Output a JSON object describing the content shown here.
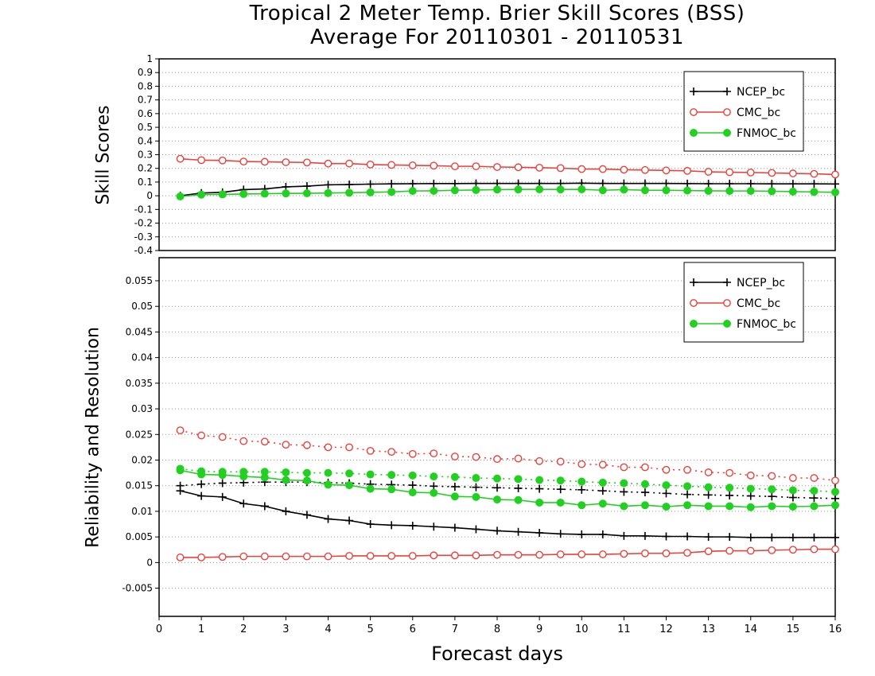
{
  "title_line1": "Tropical 2 Meter Temp. Brier Skill Scores (BSS)",
  "title_line2": "Average For 20110301 - 20110531",
  "xlabel": "Forecast days",
  "x_ticks": [
    "0",
    "1",
    "2",
    "3",
    "4",
    "5",
    "6",
    "7",
    "8",
    "9",
    "10",
    "11",
    "12",
    "13",
    "14",
    "15",
    "16"
  ],
  "colors": {
    "ncep": "#000000",
    "cmc": "#e8423c",
    "fnmoc": "#22d022",
    "grid": "#999999"
  },
  "chart_data": [
    {
      "type": "line",
      "ylabel": "Skill Scores",
      "xlim": [
        0,
        16
      ],
      "ylim": [
        -0.4,
        1
      ],
      "y_ticks": [
        "-0.4",
        "-0.3",
        "-0.2",
        "-0.1",
        "0",
        "0.1",
        "0.2",
        "0.3",
        "0.4",
        "0.5",
        "0.6",
        "0.7",
        "0.8",
        "0.9",
        "1"
      ],
      "grid": true,
      "legend_position": "top-right",
      "x": [
        0.5,
        1,
        1.5,
        2,
        2.5,
        3,
        3.5,
        4,
        4.5,
        5,
        5.5,
        6,
        6.5,
        7,
        7.5,
        8,
        8.5,
        9,
        9.5,
        10,
        10.5,
        11,
        11.5,
        12,
        12.5,
        13,
        13.5,
        14,
        14.5,
        15,
        15.5,
        16
      ],
      "series": [
        {
          "name": "NCEP_bc",
          "style": "solid",
          "marker": "plus",
          "color": "#000000",
          "values": [
            0.0,
            0.02,
            0.025,
            0.045,
            0.05,
            0.065,
            0.07,
            0.08,
            0.082,
            0.085,
            0.087,
            0.088,
            0.089,
            0.089,
            0.09,
            0.09,
            0.09,
            0.09,
            0.09,
            0.092,
            0.09,
            0.09,
            0.09,
            0.09,
            0.089,
            0.088,
            0.088,
            0.088,
            0.087,
            0.087,
            0.087,
            0.086
          ]
        },
        {
          "name": "CMC_bc",
          "style": "solid",
          "marker": "open-circle",
          "color": "#e8423c",
          "values": [
            0.27,
            0.26,
            0.258,
            0.25,
            0.248,
            0.245,
            0.243,
            0.235,
            0.235,
            0.228,
            0.225,
            0.222,
            0.22,
            0.215,
            0.215,
            0.21,
            0.208,
            0.205,
            0.202,
            0.195,
            0.195,
            0.19,
            0.188,
            0.185,
            0.182,
            0.175,
            0.172,
            0.17,
            0.167,
            0.163,
            0.16,
            0.155
          ]
        },
        {
          "name": "FNMOC_bc",
          "style": "solid",
          "marker": "filled-circle",
          "color": "#22d022",
          "values": [
            -0.005,
            0.008,
            0.01,
            0.013,
            0.015,
            0.017,
            0.018,
            0.02,
            0.022,
            0.025,
            0.028,
            0.035,
            0.036,
            0.04,
            0.042,
            0.045,
            0.046,
            0.047,
            0.046,
            0.047,
            0.04,
            0.045,
            0.04,
            0.04,
            0.038,
            0.036,
            0.035,
            0.035,
            0.033,
            0.03,
            0.028,
            0.025
          ]
        }
      ]
    },
    {
      "type": "line",
      "ylabel": "Reliability and Resolution",
      "xlim": [
        0,
        16
      ],
      "ylim": [
        -0.0105,
        0.0595
      ],
      "y_ticks": [
        "-0.005",
        "0",
        "0.005",
        "0.01",
        "0.015",
        "0.02",
        "0.025",
        "0.03",
        "0.035",
        "0.04",
        "0.045",
        "0.05",
        "0.055"
      ],
      "grid": true,
      "legend_position": "top-right",
      "x": [
        0.5,
        1,
        1.5,
        2,
        2.5,
        3,
        3.5,
        4,
        4.5,
        5,
        5.5,
        6,
        6.5,
        7,
        7.5,
        8,
        8.5,
        9,
        9.5,
        10,
        10.5,
        11,
        11.5,
        12,
        12.5,
        13,
        13.5,
        14,
        14.5,
        15,
        15.5,
        16
      ],
      "series": [
        {
          "name": "NCEP_bc",
          "style": "solid",
          "marker": "plus",
          "color": "#000000",
          "values": [
            0.014,
            0.013,
            0.0128,
            0.0115,
            0.011,
            0.01,
            0.0093,
            0.0085,
            0.0082,
            0.0075,
            0.0073,
            0.0072,
            0.007,
            0.0068,
            0.0065,
            0.0062,
            0.006,
            0.0058,
            0.0056,
            0.0055,
            0.0055,
            0.0052,
            0.0052,
            0.0051,
            0.0051,
            0.005,
            0.005,
            0.0049,
            0.0049,
            0.0049,
            0.0049,
            0.0049
          ]
        },
        {
          "name": "",
          "style": "dotted",
          "marker": "plus",
          "color": "#000000",
          "values": [
            0.015,
            0.0153,
            0.0155,
            0.0156,
            0.0157,
            0.0157,
            0.0157,
            0.0156,
            0.0155,
            0.0153,
            0.0152,
            0.0151,
            0.0149,
            0.0148,
            0.0147,
            0.0146,
            0.0145,
            0.0144,
            0.0143,
            0.0142,
            0.014,
            0.0138,
            0.0137,
            0.0135,
            0.0133,
            0.0132,
            0.0131,
            0.013,
            0.0129,
            0.0127,
            0.0126,
            0.0125
          ]
        },
        {
          "name": "CMC_bc",
          "style": "solid",
          "marker": "open-circle",
          "color": "#e8423c",
          "values": [
            0.001,
            0.001,
            0.0011,
            0.0012,
            0.0012,
            0.0012,
            0.0012,
            0.0012,
            0.0013,
            0.0013,
            0.0013,
            0.0013,
            0.0014,
            0.0014,
            0.0014,
            0.0015,
            0.0015,
            0.0015,
            0.0016,
            0.0016,
            0.0016,
            0.0017,
            0.0018,
            0.0018,
            0.0019,
            0.0022,
            0.0023,
            0.0023,
            0.0024,
            0.0025,
            0.0026,
            0.0026
          ]
        },
        {
          "name": "",
          "style": "dotted",
          "marker": "open-circle",
          "color": "#e8423c",
          "values": [
            0.0258,
            0.0248,
            0.0245,
            0.0237,
            0.0236,
            0.023,
            0.0229,
            0.0225,
            0.0225,
            0.0218,
            0.0216,
            0.0212,
            0.0213,
            0.0207,
            0.0206,
            0.0202,
            0.0203,
            0.0198,
            0.0197,
            0.0192,
            0.0191,
            0.0186,
            0.0186,
            0.0181,
            0.0181,
            0.0176,
            0.0175,
            0.017,
            0.0169,
            0.0165,
            0.0165,
            0.016
          ]
        },
        {
          "name": "FNMOC_bc",
          "style": "solid",
          "marker": "filled-circle",
          "color": "#22d022",
          "values": [
            0.018,
            0.0172,
            0.0171,
            0.0168,
            0.0166,
            0.0161,
            0.016,
            0.0152,
            0.0151,
            0.0144,
            0.0143,
            0.0137,
            0.0136,
            0.0129,
            0.0128,
            0.0123,
            0.0122,
            0.0117,
            0.0117,
            0.0112,
            0.0115,
            0.011,
            0.0112,
            0.0109,
            0.0112,
            0.011,
            0.011,
            0.0108,
            0.011,
            0.0109,
            0.011,
            0.0112
          ]
        },
        {
          "name": "",
          "style": "dotted",
          "marker": "filled-circle",
          "color": "#22d022",
          "values": [
            0.0183,
            0.0178,
            0.0177,
            0.0177,
            0.0177,
            0.0176,
            0.0175,
            0.0175,
            0.0174,
            0.0172,
            0.0171,
            0.017,
            0.0168,
            0.0167,
            0.0165,
            0.0164,
            0.0163,
            0.0161,
            0.016,
            0.0158,
            0.0156,
            0.0155,
            0.0153,
            0.0151,
            0.0149,
            0.0147,
            0.0146,
            0.0144,
            0.0143,
            0.0141,
            0.014,
            0.0138
          ]
        }
      ]
    }
  ]
}
